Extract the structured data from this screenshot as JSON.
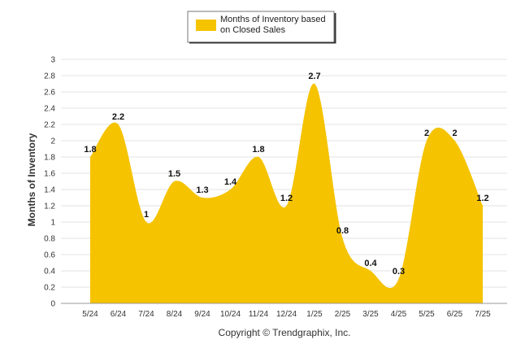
{
  "chart_data": {
    "type": "area",
    "categories": [
      "5/24",
      "6/24",
      "7/24",
      "8/24",
      "9/24",
      "10/24",
      "11/24",
      "12/24",
      "1/25",
      "2/25",
      "3/25",
      "4/25",
      "5/25",
      "6/25",
      "7/25"
    ],
    "series": [
      {
        "name": "Months of Inventory based on Closed Sales",
        "values": [
          1.8,
          2.2,
          1,
          1.5,
          1.3,
          1.4,
          1.8,
          1.2,
          2.7,
          0.8,
          0.4,
          0.3,
          2,
          2,
          1.2
        ],
        "data_labels": [
          "1.8",
          "2.2",
          "1",
          "1.5",
          "1.3",
          "1.4",
          "1.8",
          "1.2",
          "2.7",
          "0.8",
          "0.4",
          "0.3",
          "2",
          "2",
          "1.2"
        ],
        "color": "#f5c300"
      }
    ],
    "legend": {
      "lines": [
        "Months of Inventory based",
        "on Closed Sales"
      ],
      "position": "top-center"
    },
    "ylabel": "Months of Inventory",
    "xlabel": "",
    "ylim": [
      0,
      3
    ],
    "yticks": [
      "0",
      "0.2",
      "0.4",
      "0.6",
      "0.8",
      "1",
      "1.2",
      "1.4",
      "1.6",
      "1.8",
      "2",
      "2.2",
      "2.4",
      "2.6",
      "2.8",
      "3"
    ],
    "grid": true
  },
  "footer": {
    "copyright": "Copyright © Trendgraphix, Inc."
  }
}
